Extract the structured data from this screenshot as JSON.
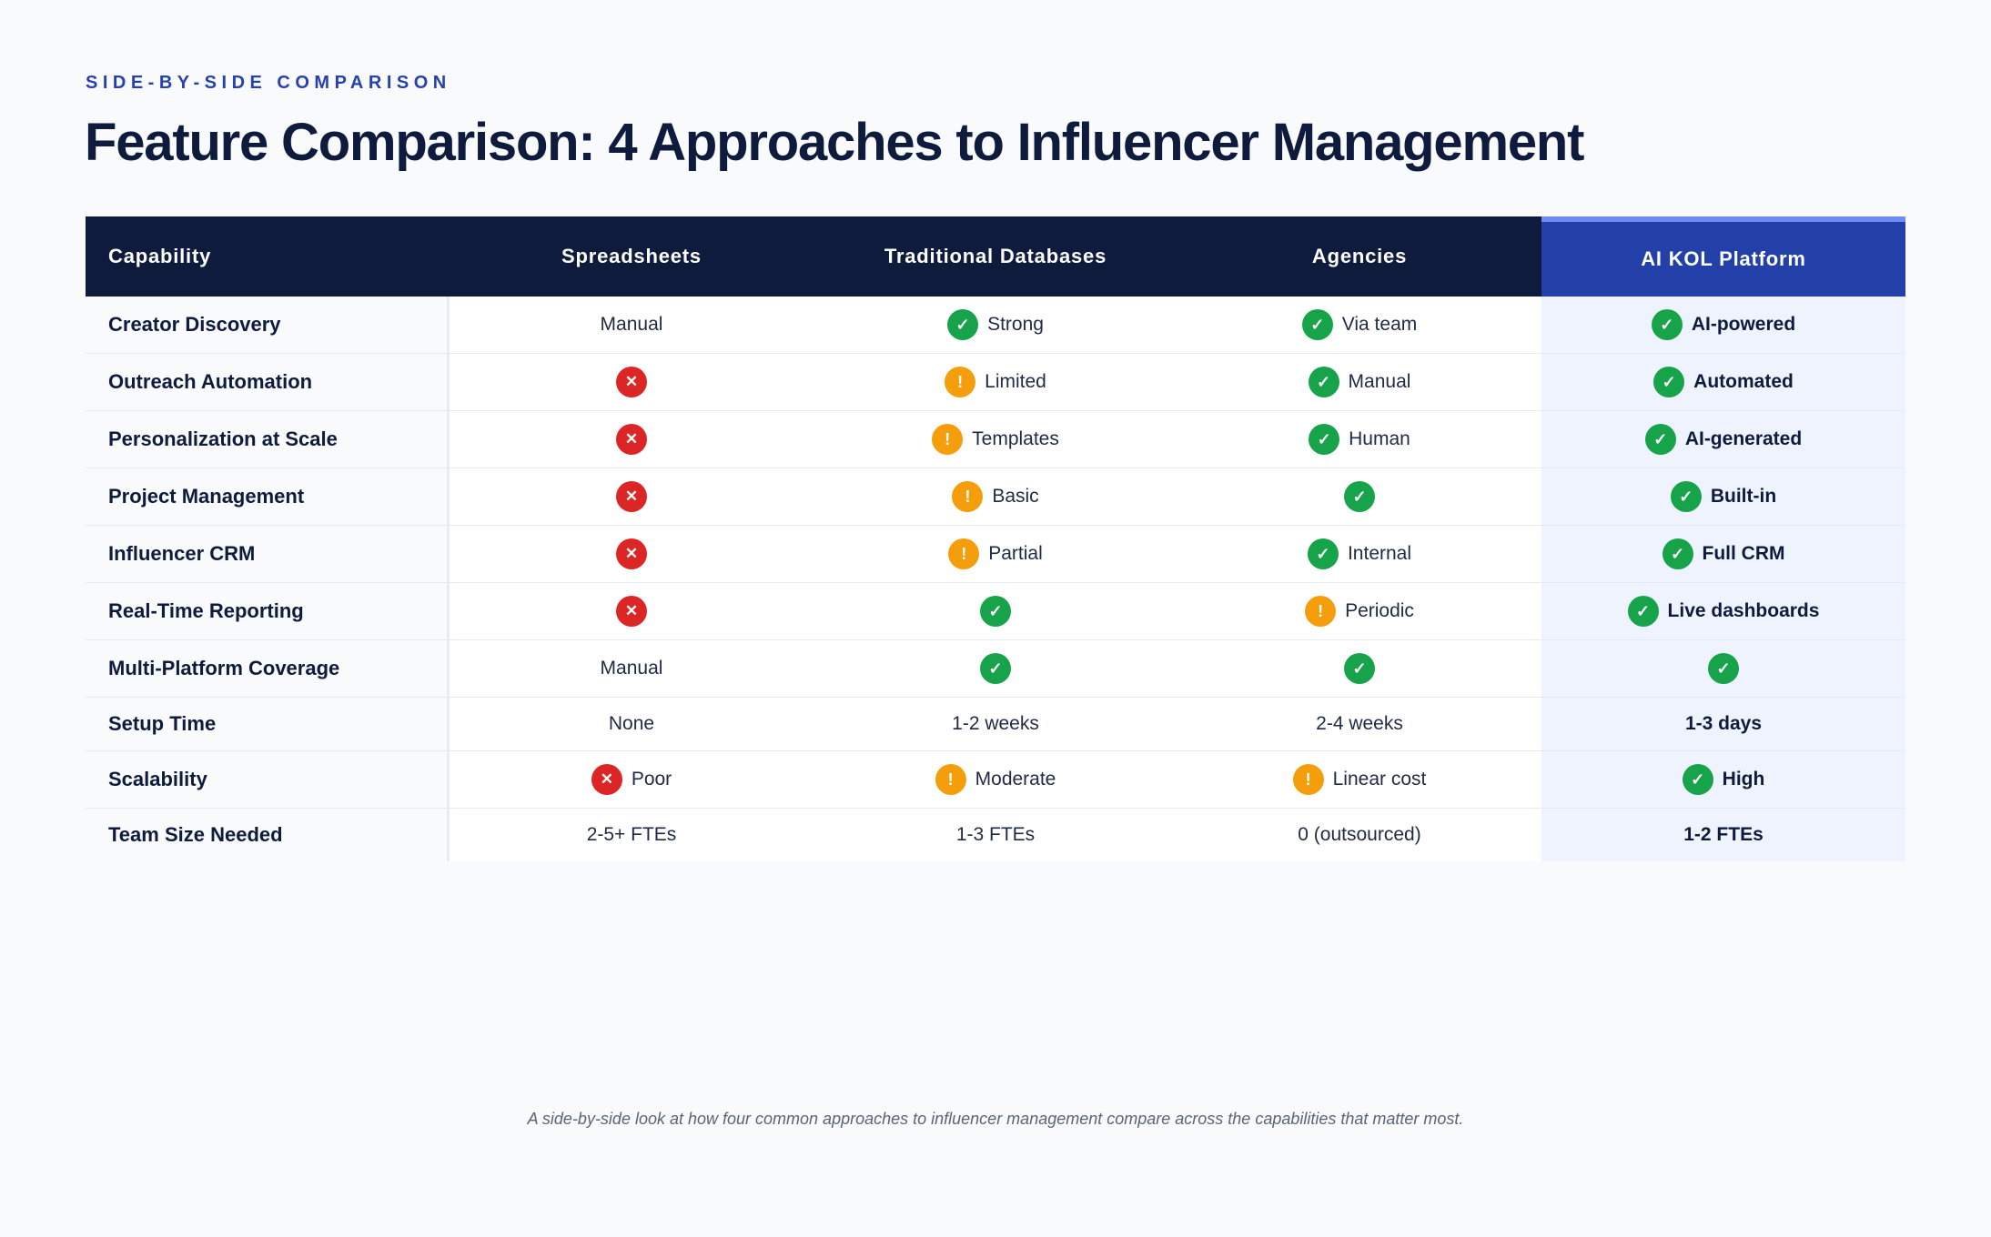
{
  "eyebrow": "SIDE-BY-SIDE COMPARISON",
  "title": "Feature Comparison: 4 Approaches to Influencer Management",
  "caption": "A side-by-side look at how four common approaches to influencer management compare across the capabilities that matter most.",
  "colors": {
    "accent": "#2841b0",
    "header_bg": "#0f1b3d",
    "highlight_header": "#2240a8",
    "highlight_bg": "#eef3fe",
    "check": "#16a34a",
    "cross": "#dc2626",
    "warn": "#f59e0b"
  },
  "icons": {
    "check": "check-circle-icon",
    "cross": "x-circle-icon",
    "warn": "warning-circle-icon"
  },
  "headers": [
    "Capability",
    "Spreadsheets",
    "Traditional Databases",
    "Agencies",
    "AI KOL Platform"
  ],
  "rows": [
    {
      "capability": "Creator Discovery",
      "height": 0,
      "cells": [
        {
          "icon": "",
          "text": "Manual"
        },
        {
          "icon": "check",
          "text": "Strong"
        },
        {
          "icon": "check",
          "text": "Via team"
        },
        {
          "icon": "check",
          "text": "AI-powered"
        }
      ]
    },
    {
      "capability": "Outreach Automation",
      "cells": [
        {
          "icon": "cross",
          "text": ""
        },
        {
          "icon": "warn",
          "text": "Limited"
        },
        {
          "icon": "check",
          "text": "Manual"
        },
        {
          "icon": "check",
          "text": "Automated"
        }
      ]
    },
    {
      "capability": "Personalization at Scale",
      "cells": [
        {
          "icon": "cross",
          "text": ""
        },
        {
          "icon": "warn",
          "text": "Templates"
        },
        {
          "icon": "check",
          "text": "Human"
        },
        {
          "icon": "check",
          "text": "AI-generated"
        }
      ]
    },
    {
      "capability": "Project Management",
      "cells": [
        {
          "icon": "cross",
          "text": ""
        },
        {
          "icon": "warn",
          "text": "Basic"
        },
        {
          "icon": "check",
          "text": ""
        },
        {
          "icon": "check",
          "text": "Built-in"
        }
      ]
    },
    {
      "capability": "Influencer CRM",
      "cells": [
        {
          "icon": "cross",
          "text": ""
        },
        {
          "icon": "warn",
          "text": "Partial"
        },
        {
          "icon": "check",
          "text": "Internal"
        },
        {
          "icon": "check",
          "text": "Full CRM"
        }
      ]
    },
    {
      "capability": "Real-Time Reporting",
      "cells": [
        {
          "icon": "cross",
          "text": ""
        },
        {
          "icon": "check",
          "text": ""
        },
        {
          "icon": "warn",
          "text": "Periodic"
        },
        {
          "icon": "check",
          "text": "Live dashboards"
        }
      ]
    },
    {
      "capability": "Multi-Platform Coverage",
      "cells": [
        {
          "icon": "",
          "text": "Manual"
        },
        {
          "icon": "check",
          "text": ""
        },
        {
          "icon": "check",
          "text": ""
        },
        {
          "icon": "check",
          "text": ""
        }
      ]
    },
    {
      "capability": "Setup Time",
      "cells": [
        {
          "icon": "",
          "text": "None"
        },
        {
          "icon": "",
          "text": "1-2 weeks"
        },
        {
          "icon": "",
          "text": "2-4 weeks"
        },
        {
          "icon": "",
          "text": "1-3 days"
        }
      ]
    },
    {
      "capability": "Scalability",
      "cells": [
        {
          "icon": "cross",
          "text": "Poor"
        },
        {
          "icon": "warn",
          "text": "Moderate"
        },
        {
          "icon": "warn",
          "text": "Linear cost"
        },
        {
          "icon": "check",
          "text": "High"
        }
      ]
    },
    {
      "capability": "Team Size Needed",
      "cells": [
        {
          "icon": "",
          "text": "2-5+ FTEs"
        },
        {
          "icon": "",
          "text": "1-3 FTEs"
        },
        {
          "icon": "",
          "text": "0 (outsourced)"
        },
        {
          "icon": "",
          "text": "1-2 FTEs"
        }
      ]
    }
  ]
}
